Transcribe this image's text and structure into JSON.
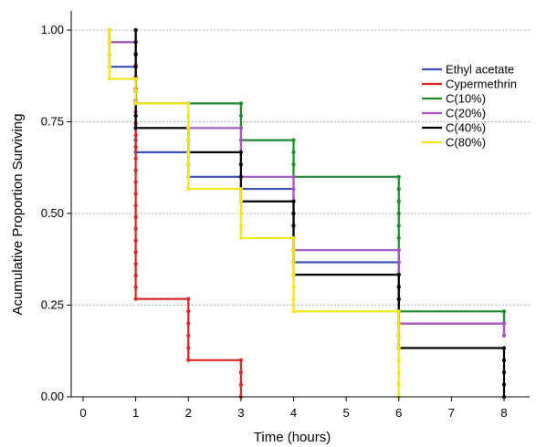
{
  "chart_data": {
    "type": "line",
    "step": true,
    "xlabel": "Time (hours)",
    "ylabel": "Acumulative Proportion Surviving",
    "xlim": [
      0,
      8
    ],
    "ylim": [
      0,
      1.0
    ],
    "x_ticks": [
      "0",
      "1",
      "2",
      "3",
      "4",
      "5",
      "6",
      "7",
      "8"
    ],
    "y_ticks": [
      "0.00",
      "0.25",
      "0.50",
      "0.75",
      "1.00"
    ],
    "y_tick_values": [
      0,
      0.25,
      0.5,
      0.75,
      1.0
    ],
    "grid": "horizontal dotted",
    "legend_position": "right",
    "series": [
      {
        "name": "Ethyl acetate",
        "color": "#3a4fb8",
        "x": [
          0.5,
          1,
          2,
          3,
          4,
          6,
          8
        ],
        "y": [
          0.9,
          0.667,
          0.6,
          0.567,
          0.367,
          0.2,
          0.167
        ]
      },
      {
        "name": "Cypermethrin",
        "color": "#e02424",
        "x": [
          1,
          2,
          3
        ],
        "y": [
          0.267,
          0.1,
          0
        ]
      },
      {
        "name": "C(10%)",
        "color": "#1e8a2e",
        "x": [
          1,
          2,
          3,
          4,
          6,
          8
        ],
        "y": [
          0.8,
          0.8,
          0.7,
          0.6,
          0.233,
          0.2
        ]
      },
      {
        "name": "C(20%)",
        "color": "#a855c0",
        "x": [
          0.5,
          1,
          2,
          3,
          4,
          6,
          8
        ],
        "y": [
          0.967,
          0.733,
          0.733,
          0.6,
          0.4,
          0.2,
          0.167
        ]
      },
      {
        "name": "C(40%)",
        "color": "#000000",
        "x": [
          1,
          2,
          3,
          4,
          6,
          8
        ],
        "y": [
          0.733,
          0.667,
          0.533,
          0.333,
          0.133,
          0
        ]
      },
      {
        "name": "C(80%)",
        "color": "#f2e61a",
        "x": [
          0.5,
          1,
          2,
          3,
          4,
          6
        ],
        "y": [
          0.867,
          0.8,
          0.567,
          0.433,
          0.233,
          0
        ]
      }
    ]
  }
}
